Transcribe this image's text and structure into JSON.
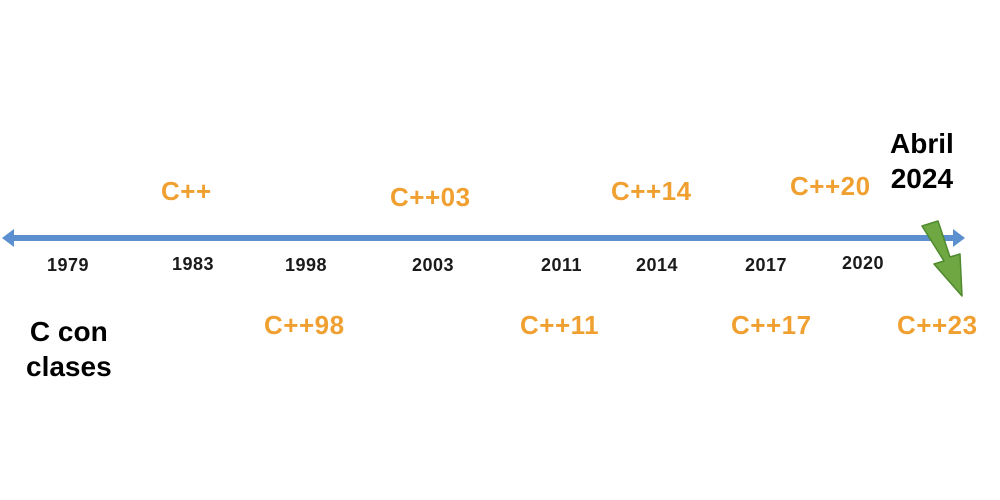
{
  "colors": {
    "axis": "#5B8FD0",
    "version_text": "#F0A030",
    "year_text": "#1a1a1a",
    "marker_arrow": "#6FA843",
    "marker_arrow_outline": "#4E8A2E"
  },
  "timeline": {
    "years": [
      "1979",
      "1983",
      "1998",
      "2003",
      "2011",
      "2014",
      "2017",
      "2020"
    ],
    "versions_above": [
      "C++",
      "C++03",
      "C++14",
      "C++20"
    ],
    "versions_below": [
      "C++98",
      "C++11",
      "C++17",
      "C++23"
    ],
    "origin_label": [
      "C con",
      "clases"
    ],
    "current_marker": [
      "Abril",
      "2024"
    ]
  }
}
